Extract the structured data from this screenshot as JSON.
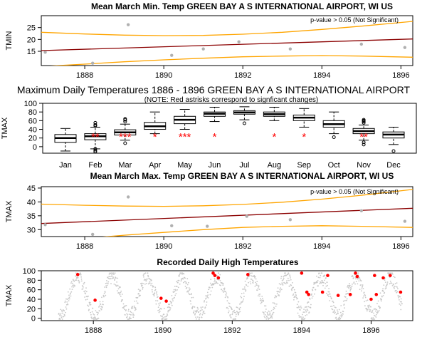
{
  "chart_data": [
    {
      "id": "tmin_trend",
      "type": "scatter",
      "title": "Mean March Min. Temp GREEN BAY A S INTERNATIONAL AIRPORT, WI US",
      "ylabel": "TMIN",
      "xlabel": "",
      "xlim": [
        1886.9,
        1896.3
      ],
      "ylim": [
        9,
        30
      ],
      "xticks": [
        1888,
        1890,
        1892,
        1894,
        1896
      ],
      "yticks": [
        15,
        20,
        25
      ],
      "annotation": "p-value > 0.05 (Not Significant)",
      "colors": {
        "points": "#b0b0b0",
        "trend": "#8b0000",
        "band": "#ffa500"
      },
      "points": [
        {
          "x": 1887.0,
          "y": 14.6
        },
        {
          "x": 1888.2,
          "y": 10.0
        },
        {
          "x": 1889.1,
          "y": 26.2
        },
        {
          "x": 1890.2,
          "y": 13.3
        },
        {
          "x": 1891.0,
          "y": 16.0
        },
        {
          "x": 1891.9,
          "y": 19.0
        },
        {
          "x": 1893.2,
          "y": 16.0
        },
        {
          "x": 1895.0,
          "y": 18.0
        },
        {
          "x": 1896.1,
          "y": 16.6
        }
      ],
      "trend": [
        {
          "x": 1886.9,
          "y": 15.3
        },
        {
          "x": 1896.3,
          "y": 20.2
        }
      ],
      "upper": [
        {
          "x": 1886.9,
          "y": 23.0
        },
        {
          "x": 1888.0,
          "y": 22.3
        },
        {
          "x": 1889.0,
          "y": 21.8
        },
        {
          "x": 1890.0,
          "y": 21.6
        },
        {
          "x": 1891.0,
          "y": 21.7
        },
        {
          "x": 1892.0,
          "y": 22.2
        },
        {
          "x": 1893.0,
          "y": 23.0
        },
        {
          "x": 1894.0,
          "y": 24.2
        },
        {
          "x": 1895.0,
          "y": 25.6
        },
        {
          "x": 1896.3,
          "y": 27.6
        }
      ],
      "lower": [
        {
          "x": 1886.9,
          "y": 8.6
        },
        {
          "x": 1888.0,
          "y": 9.6
        },
        {
          "x": 1889.0,
          "y": 10.6
        },
        {
          "x": 1890.0,
          "y": 11.4
        },
        {
          "x": 1891.0,
          "y": 12.1
        },
        {
          "x": 1892.0,
          "y": 12.7
        },
        {
          "x": 1893.0,
          "y": 13.0
        },
        {
          "x": 1894.0,
          "y": 13.2
        },
        {
          "x": 1895.0,
          "y": 13.0
        },
        {
          "x": 1896.3,
          "y": 12.5
        }
      ]
    },
    {
      "id": "monthly_box",
      "type": "box",
      "title": "Maximum Daily Temperatures 1886 - 1896 GREEN BAY A S INTERNATIONAL AIRPORT",
      "subtitle": "(NOTE: Red astrisks correspond to signficant changes)",
      "ylabel": "TMAX",
      "ylim": [
        -15,
        100
      ],
      "yticks": [
        0,
        20,
        40,
        60,
        80,
        100
      ],
      "categories": [
        "Jan",
        "Feb",
        "Mar",
        "Apr",
        "May",
        "Jun",
        "Jul",
        "Aug",
        "Sep",
        "Oct",
        "Nov",
        "Dec"
      ],
      "colors": {
        "box": "#000000",
        "star": "#ff0000"
      },
      "boxes": [
        {
          "month": "Jan",
          "wl": -10,
          "q1": 10,
          "med": 20,
          "q3": 28,
          "wh": 42,
          "out": [],
          "stars": ""
        },
        {
          "month": "Feb",
          "wl": -5,
          "q1": 16,
          "med": 24,
          "q3": 30,
          "wh": 45,
          "out": [
            55,
            50,
            -12,
            -9,
            -5,
            48
          ],
          "stars": "**"
        },
        {
          "month": "Mar",
          "wl": 15,
          "q1": 27,
          "med": 33,
          "q3": 39,
          "wh": 52,
          "out": [
            58,
            62,
            64,
            8
          ],
          "stars": "***"
        },
        {
          "month": "Apr",
          "wl": 30,
          "q1": 40,
          "med": 47,
          "q3": 56,
          "wh": 80,
          "out": [],
          "stars": "*"
        },
        {
          "month": "May",
          "wl": 40,
          "q1": 53,
          "med": 62,
          "q3": 70,
          "wh": 86,
          "out": [],
          "stars": "***"
        },
        {
          "month": "Jun",
          "wl": 58,
          "q1": 70,
          "med": 76,
          "q3": 80,
          "wh": 91,
          "out": [],
          "stars": "*"
        },
        {
          "month": "Jul",
          "wl": 62,
          "q1": 75,
          "med": 79,
          "q3": 83,
          "wh": 92,
          "out": [
            54
          ],
          "stars": ""
        },
        {
          "month": "Aug",
          "wl": 60,
          "q1": 70,
          "med": 75,
          "q3": 80,
          "wh": 91,
          "out": [],
          "stars": "*"
        },
        {
          "month": "Sep",
          "wl": 45,
          "q1": 60,
          "med": 67,
          "q3": 73,
          "wh": 88,
          "out": [],
          "stars": "*"
        },
        {
          "month": "Oct",
          "wl": 30,
          "q1": 45,
          "med": 52,
          "q3": 60,
          "wh": 80,
          "out": [
            22
          ],
          "stars": ""
        },
        {
          "month": "Nov",
          "wl": 15,
          "q1": 30,
          "med": 36,
          "q3": 42,
          "wh": 50,
          "out": [
            55,
            58,
            60,
            62,
            5,
            10
          ],
          "stars": "**"
        },
        {
          "month": "Dec",
          "wl": 5,
          "q1": 20,
          "med": 28,
          "q3": 34,
          "wh": 45,
          "out": [
            -10
          ],
          "stars": ""
        }
      ]
    },
    {
      "id": "tmax_trend",
      "type": "scatter",
      "title": "Mean March Max. Temp GREEN BAY A S INTERNATIONAL AIRPORT, WI US",
      "ylabel": "TMAX",
      "xlabel": "",
      "xlim": [
        1886.9,
        1896.3
      ],
      "ylim": [
        27.5,
        45.5
      ],
      "xticks": [
        1888,
        1890,
        1892,
        1894,
        1896
      ],
      "yticks": [
        30,
        35,
        40,
        45
      ],
      "annotation": "p-value > 0.05 (Not Significant)",
      "colors": {
        "points": "#b0b0b0",
        "trend": "#8b0000",
        "band": "#ffa500"
      },
      "points": [
        {
          "x": 1887.0,
          "y": 31.8
        },
        {
          "x": 1888.2,
          "y": 28.3
        },
        {
          "x": 1889.1,
          "y": 41.8
        },
        {
          "x": 1890.2,
          "y": 31.4
        },
        {
          "x": 1891.1,
          "y": 31.2
        },
        {
          "x": 1892.1,
          "y": 34.8
        },
        {
          "x": 1893.2,
          "y": 33.6
        },
        {
          "x": 1895.0,
          "y": 36.8
        },
        {
          "x": 1896.1,
          "y": 33.0
        }
      ],
      "trend": [
        {
          "x": 1886.9,
          "y": 32.2
        },
        {
          "x": 1896.3,
          "y": 37.7
        }
      ],
      "upper": [
        {
          "x": 1886.9,
          "y": 39.2
        },
        {
          "x": 1888.0,
          "y": 38.8
        },
        {
          "x": 1889.0,
          "y": 38.5
        },
        {
          "x": 1890.0,
          "y": 38.4
        },
        {
          "x": 1891.0,
          "y": 38.6
        },
        {
          "x": 1892.0,
          "y": 39.1
        },
        {
          "x": 1893.0,
          "y": 39.9
        },
        {
          "x": 1894.0,
          "y": 41.0
        },
        {
          "x": 1895.0,
          "y": 42.4
        },
        {
          "x": 1896.3,
          "y": 44.5
        }
      ],
      "lower": [
        {
          "x": 1886.9,
          "y": 25.2
        },
        {
          "x": 1888.0,
          "y": 26.8
        },
        {
          "x": 1889.0,
          "y": 28.0
        },
        {
          "x": 1890.0,
          "y": 29.0
        },
        {
          "x": 1891.0,
          "y": 30.0
        },
        {
          "x": 1892.0,
          "y": 30.8
        },
        {
          "x": 1893.0,
          "y": 31.2
        },
        {
          "x": 1894.0,
          "y": 31.4
        },
        {
          "x": 1895.0,
          "y": 31.2
        },
        {
          "x": 1896.3,
          "y": 30.8
        }
      ]
    },
    {
      "id": "daily_high",
      "type": "scatter",
      "title": "Recorded Daily High Temperatures",
      "ylabel": "TMAX",
      "xlabel": "",
      "xlim": [
        1886.5,
        1897.2
      ],
      "ylim": [
        -5,
        100
      ],
      "xticks": [
        1888,
        1890,
        1892,
        1894,
        1896
      ],
      "yticks": [
        0,
        20,
        40,
        60,
        80,
        100
      ],
      "series_description": "daily maximum temperatures, seasonal cycle approx. 5 to 90",
      "colors": {
        "points": "#c8c8c8",
        "highlight": "#ff0000"
      },
      "highlights": [
        {
          "x": 1887.55,
          "y": 92
        },
        {
          "x": 1888.05,
          "y": 38
        },
        {
          "x": 1889.95,
          "y": 42
        },
        {
          "x": 1890.1,
          "y": 36
        },
        {
          "x": 1891.45,
          "y": 95
        },
        {
          "x": 1891.5,
          "y": 90
        },
        {
          "x": 1891.6,
          "y": 85
        },
        {
          "x": 1892.45,
          "y": 92
        },
        {
          "x": 1894.0,
          "y": 95
        },
        {
          "x": 1894.15,
          "y": 55
        },
        {
          "x": 1894.2,
          "y": 50
        },
        {
          "x": 1894.6,
          "y": 55
        },
        {
          "x": 1894.75,
          "y": 90
        },
        {
          "x": 1895.05,
          "y": 48
        },
        {
          "x": 1895.4,
          "y": 50
        },
        {
          "x": 1895.55,
          "y": 95
        },
        {
          "x": 1895.6,
          "y": 88
        },
        {
          "x": 1896.0,
          "y": 40
        },
        {
          "x": 1896.1,
          "y": 90
        },
        {
          "x": 1896.15,
          "y": 50
        },
        {
          "x": 1896.35,
          "y": 85
        },
        {
          "x": 1896.55,
          "y": 90
        },
        {
          "x": 1896.85,
          "y": 55
        }
      ]
    }
  ]
}
